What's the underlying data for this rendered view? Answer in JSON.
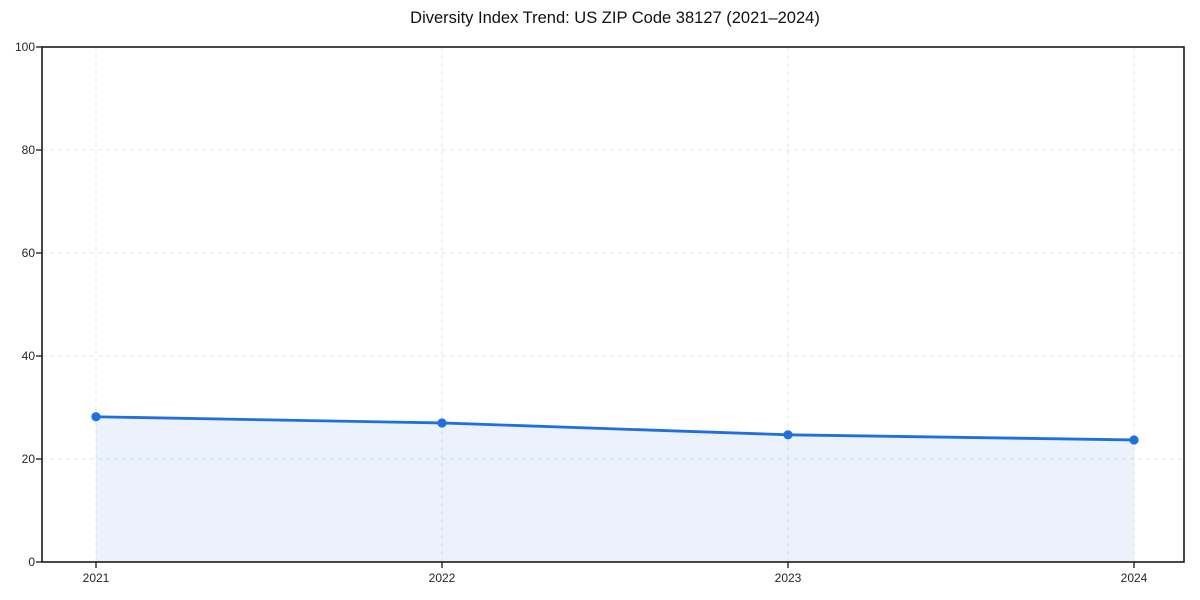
{
  "page": {
    "background_color": "#ffffff"
  },
  "chart_data": {
    "type": "area",
    "title": "Diversity Index Trend: US ZIP Code 38127 (2021–2024)",
    "xlabel": "",
    "ylabel": "",
    "categories": [
      "2021",
      "2022",
      "2023",
      "2024"
    ],
    "series": [
      {
        "name": "Diversity Index",
        "values": [
          28.2,
          27.0,
          24.7,
          23.7
        ]
      }
    ],
    "ylim": [
      0,
      100
    ],
    "yticks": [
      0,
      20,
      40,
      60,
      80,
      100
    ],
    "grid": true,
    "grid_style": "dashed",
    "grid_color": "#e4e4e4",
    "legend": "none",
    "line_color": "#1f6fe0",
    "marker": "circle",
    "fill_color": "#1f6fe0",
    "fill_opacity": 0.09,
    "spine_color": "#1a1a1a"
  }
}
